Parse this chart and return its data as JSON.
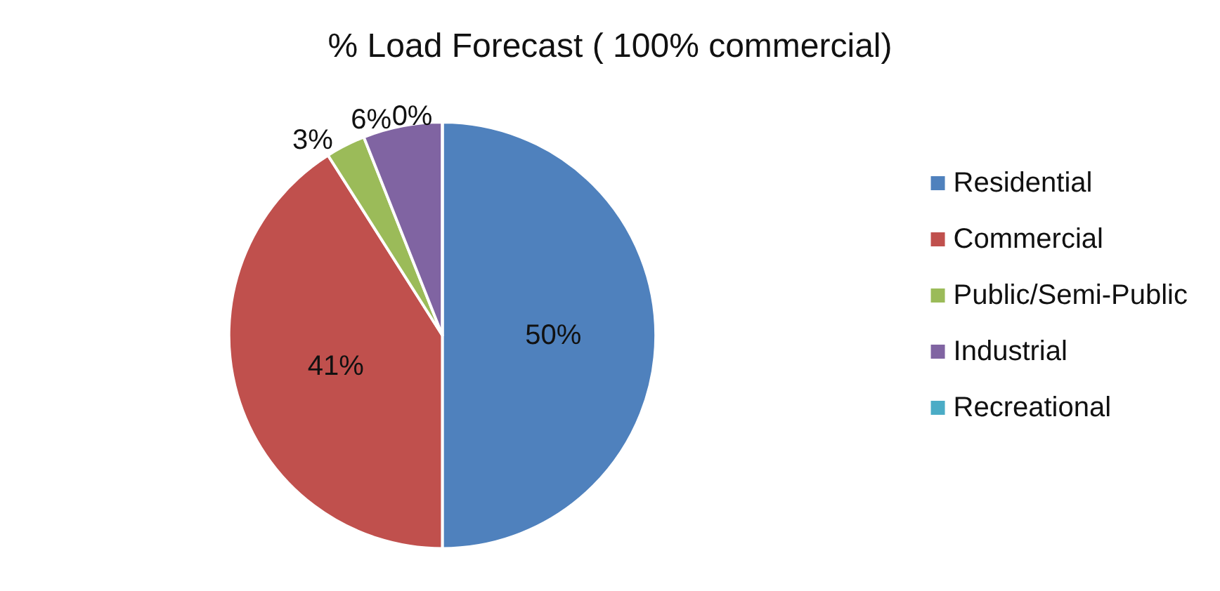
{
  "chart_data": {
    "type": "pie",
    "title": "% Load Forecast ( 100% commercial)",
    "categories": [
      "Residential",
      "Commercial",
      "Public/Semi-Public",
      "Industrial",
      "Recreational"
    ],
    "values": [
      50,
      41,
      3,
      6,
      0
    ],
    "value_labels": [
      "50%",
      "41%",
      "3%",
      "6%",
      "0%"
    ],
    "colors": [
      "#4f81bd",
      "#c0504d",
      "#9bbb59",
      "#8064a2",
      "#4bacc6"
    ],
    "legend": "right"
  }
}
